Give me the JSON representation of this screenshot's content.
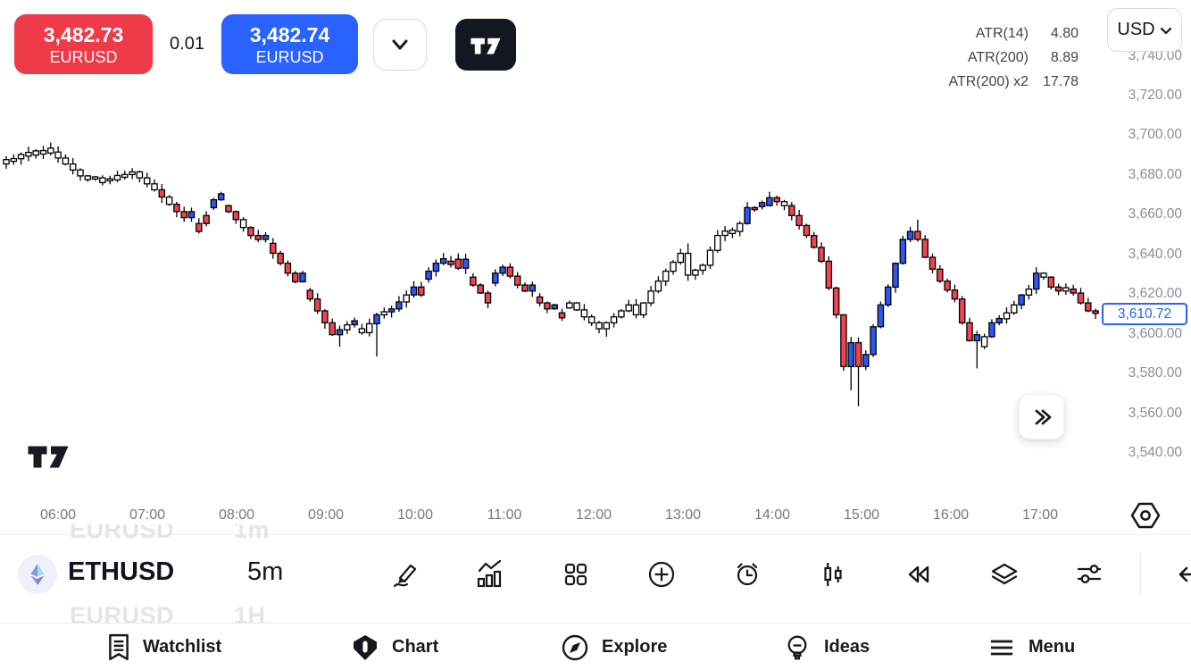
{
  "trade_panel": {
    "sell_button": {
      "price": "3,482.73",
      "symbol": "EURUSD"
    },
    "spread": "0.01",
    "buy_button": {
      "price": "3,482.74",
      "symbol": "EURUSD"
    }
  },
  "indicators": [
    {
      "label": "ATR(14)",
      "value": "4.80"
    },
    {
      "label": "ATR(200)",
      "value": "8.89"
    },
    {
      "label": "ATR(200) x2",
      "value": "17.78"
    }
  ],
  "currency_button": {
    "label": "USD"
  },
  "symbol_bar": {
    "symbol": "ETHUSD",
    "interval": "5m",
    "prev_item": {
      "symbol": "EURUSD",
      "interval": "1m"
    },
    "next_item": {
      "symbol": "EURUSD",
      "interval": "1H"
    }
  },
  "toolbar": {
    "icons": [
      "draw",
      "indicators",
      "layout-grid",
      "add",
      "alert",
      "chart-type-candles",
      "replay",
      "layers",
      "settings-sliders",
      "collapse-arrow"
    ]
  },
  "nav": {
    "items": [
      {
        "label": "Watchlist",
        "icon": "watchlist-icon",
        "active": false
      },
      {
        "label": "Chart",
        "icon": "chart-icon",
        "active": true
      },
      {
        "label": "Explore",
        "icon": "explore-icon",
        "active": false
      },
      {
        "label": "Ideas",
        "icon": "ideas-icon",
        "active": false
      },
      {
        "label": "Menu",
        "icon": "menu-icon",
        "active": false
      }
    ]
  },
  "chart_data": {
    "type": "candlestick",
    "symbol": "ETHUSD",
    "interval": "5m",
    "x_labels": [
      "06:00",
      "07:00",
      "08:00",
      "09:00",
      "10:00",
      "11:00",
      "12:00",
      "13:00",
      "14:00",
      "15:00",
      "16:00",
      "17:00"
    ],
    "y_ticks": [
      {
        "label": "3,740.00",
        "price": 3740
      },
      {
        "label": "3,720.00",
        "price": 3720
      },
      {
        "label": "3,700.00",
        "price": 3700
      },
      {
        "label": "3,680.00",
        "price": 3680
      },
      {
        "label": "3,660.00",
        "price": 3660
      },
      {
        "label": "3,640.00",
        "price": 3640
      },
      {
        "label": "3,620.00",
        "price": 3620
      },
      {
        "label": "3,600.00",
        "price": 3600
      },
      {
        "label": "3,580.00",
        "price": 3580
      },
      {
        "label": "3,560.00",
        "price": 3560
      },
      {
        "label": "3,540.00",
        "price": 3540
      }
    ],
    "current_price": 3610.72,
    "current_price_label": "3,610.72",
    "y_range_visible": [
      3516,
      3768
    ],
    "grid": false,
    "colors": {
      "up": "#2c57f2",
      "down": "#f04450",
      "neutral": "#ffffff",
      "outline": "#000000"
    },
    "anchors": [
      [
        0,
        3686
      ],
      [
        3,
        3690
      ],
      [
        7,
        3692
      ],
      [
        11,
        3680
      ],
      [
        15,
        3678
      ],
      [
        18,
        3682
      ],
      [
        21,
        3673
      ],
      [
        24,
        3662
      ],
      [
        26,
        3656
      ],
      [
        29,
        3668
      ],
      [
        31,
        3662
      ],
      [
        34,
        3650
      ],
      [
        36,
        3646
      ],
      [
        39,
        3631
      ],
      [
        42,
        3618
      ],
      [
        44,
        3606
      ],
      [
        45,
        3600
      ],
      [
        47,
        3605
      ],
      [
        49,
        3601
      ],
      [
        51,
        3610
      ],
      [
        53,
        3613
      ],
      [
        55,
        3620
      ],
      [
        57,
        3628
      ],
      [
        59,
        3636
      ],
      [
        61,
        3638
      ],
      [
        63,
        3629
      ],
      [
        65,
        3621
      ],
      [
        67,
        3631
      ],
      [
        68,
        3634
      ],
      [
        70,
        3625
      ],
      [
        72,
        3619
      ],
      [
        74,
        3613
      ],
      [
        75,
        3611
      ],
      [
        77,
        3616
      ],
      [
        79,
        3609
      ],
      [
        81,
        3603
      ],
      [
        83,
        3609
      ],
      [
        85,
        3615
      ],
      [
        86,
        3610
      ],
      [
        88,
        3622
      ],
      [
        90,
        3632
      ],
      [
        92,
        3641
      ],
      [
        93,
        3630
      ],
      [
        95,
        3635
      ],
      [
        97,
        3650
      ],
      [
        99,
        3652
      ],
      [
        100,
        3656
      ],
      [
        101,
        3664
      ],
      [
        103,
        3665
      ],
      [
        104,
        3669
      ],
      [
        106,
        3665
      ],
      [
        107,
        3660
      ],
      [
        109,
        3650
      ],
      [
        110,
        3644
      ],
      [
        111,
        3637
      ],
      [
        113,
        3610
      ],
      [
        114,
        3584
      ],
      [
        115,
        3596
      ],
      [
        116,
        3584
      ],
      [
        117,
        3590
      ],
      [
        118,
        3604
      ],
      [
        119,
        3615
      ],
      [
        120,
        3624
      ],
      [
        121,
        3636
      ],
      [
        122,
        3648
      ],
      [
        123,
        3652
      ],
      [
        124,
        3648
      ],
      [
        125,
        3639
      ],
      [
        127,
        3627
      ],
      [
        129,
        3618
      ],
      [
        130,
        3606
      ],
      [
        131,
        3597
      ],
      [
        132,
        3594
      ],
      [
        133,
        3599
      ],
      [
        134,
        3606
      ],
      [
        135,
        3608
      ],
      [
        136,
        3611
      ],
      [
        137,
        3615
      ],
      [
        138,
        3620
      ],
      [
        139,
        3623
      ],
      [
        140,
        3631
      ],
      [
        141,
        3629
      ],
      [
        142,
        3624
      ],
      [
        143,
        3622
      ],
      [
        144,
        3623
      ],
      [
        145,
        3621
      ],
      [
        146,
        3616
      ],
      [
        147,
        3612
      ],
      [
        148,
        3610.72
      ]
    ],
    "candle_colors": "WWWWWWWWWWWWWWWWWWWWWRWRRBRRBBRRWRRBRRRRBRRRRBWBWWBWBBWBRBBBRRBRRRBBRRRBRRBRWWWWWWWWWWWWWWWWWWWWWWWWBRBBRWRRRRRRRRBRBBBBBBBRRRRRRRRBWBBWWBWBWRRWRRRR",
    "wick_low": {
      "45": 3594,
      "50": 3589,
      "81": 3599,
      "114": 3572,
      "115": 3564,
      "131": 3583
    },
    "wick_high": {
      "92": 3646,
      "103": 3672,
      "123": 3658,
      "139": 3634
    }
  }
}
